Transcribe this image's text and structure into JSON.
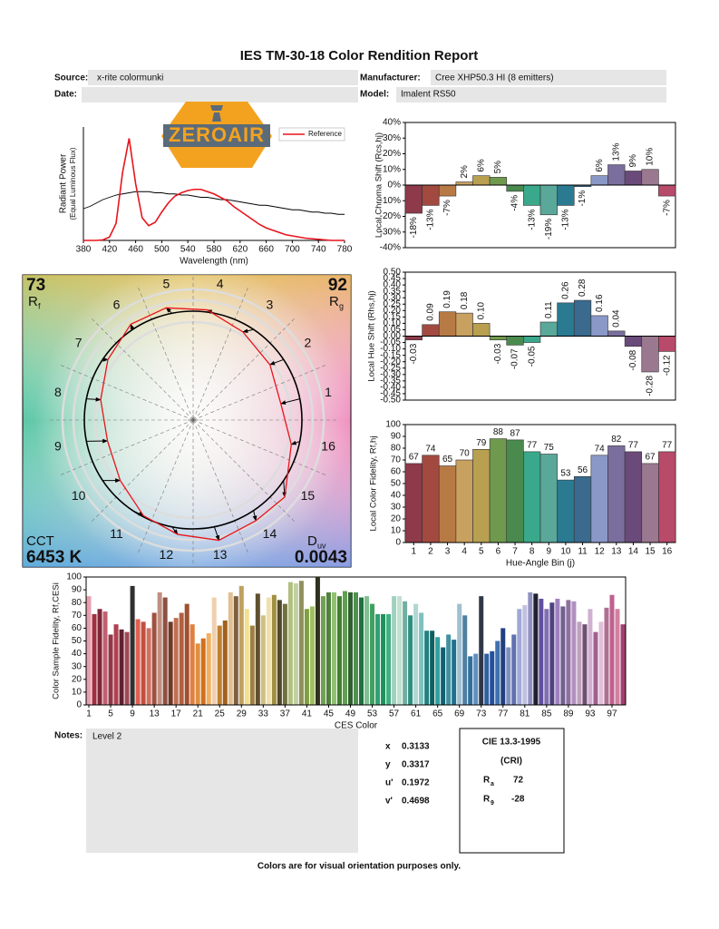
{
  "title": "IES TM-30-18 Color Rendition Report",
  "header": {
    "source_label": "Source:",
    "source": "x-rite colormunki",
    "manufacturer_label": "Manufacturer:",
    "manufacturer": "Cree XHP50.3 HI (8 emitters)",
    "date_label": "Date:",
    "model_label": "Model:",
    "model": "Imalent RS50"
  },
  "logo": {
    "text": "ZEROAIR"
  },
  "chart_data": [
    {
      "type": "line",
      "xlabel": "Wavelength (nm)",
      "ylabel": "Radiant Power",
      "ylabel2": "(Equal Luminous Flux)",
      "x": [
        380,
        390,
        400,
        410,
        420,
        430,
        440,
        450,
        460,
        470,
        480,
        490,
        500,
        510,
        520,
        530,
        540,
        550,
        560,
        570,
        580,
        590,
        600,
        610,
        620,
        630,
        640,
        650,
        660,
        670,
        680,
        690,
        700,
        710,
        720,
        730,
        740,
        750,
        760,
        770,
        780
      ],
      "xlim": [
        380,
        780
      ],
      "xticks": [
        380,
        420,
        460,
        500,
        540,
        580,
        620,
        660,
        700,
        740,
        780
      ],
      "ylim": [
        0,
        1
      ],
      "series": [
        {
          "name": "Reference",
          "color": "#e8141c",
          "values": [
            0,
            0,
            0,
            0.005,
            0.03,
            0.15,
            0.6,
            0.9,
            0.5,
            0.2,
            0.13,
            0.16,
            0.25,
            0.33,
            0.39,
            0.42,
            0.44,
            0.45,
            0.45,
            0.43,
            0.41,
            0.38,
            0.35,
            0.3,
            0.26,
            0.22,
            0.18,
            0.14,
            0.11,
            0.09,
            0.07,
            0.05,
            0.04,
            0.03,
            0.02,
            0.015,
            0.01,
            0.005,
            0,
            0,
            0
          ]
        },
        {
          "color": "#000000",
          "values": [
            0.28,
            0.3,
            0.33,
            0.36,
            0.38,
            0.4,
            0.41,
            0.42,
            0.43,
            0.43,
            0.43,
            0.42,
            0.42,
            0.41,
            0.41,
            0.4,
            0.4,
            0.39,
            0.38,
            0.38,
            0.37,
            0.36,
            0.36,
            0.35,
            0.34,
            0.33,
            0.32,
            0.31,
            0.31,
            0.3,
            0.29,
            0.28,
            0.27,
            0.27,
            0.26,
            0.25,
            0.25,
            0.24,
            0.24,
            0.23,
            0.23
          ]
        }
      ]
    },
    {
      "type": "bar",
      "ylabel": "Local Chroma Shift (Rcs,hj)",
      "values": [
        -18,
        -13,
        -7,
        2,
        6,
        5,
        -4,
        -13,
        -19,
        -13,
        -1,
        6,
        13,
        9,
        10,
        -7
      ],
      "value_labels": [
        "-18%",
        "-13%",
        "-7%",
        "2%",
        "6%",
        "5%",
        "-4%",
        "-13%",
        "-19%",
        "-13%",
        "-1%",
        "6%",
        "13%",
        "9%",
        "10%",
        "-7%"
      ],
      "colors": [
        "#8e3a4a",
        "#a24a40",
        "#b87a45",
        "#c8a060",
        "#b8a050",
        "#6f9a4e",
        "#4a8a4e",
        "#3aa88a",
        "#5aa89a",
        "#2a7a92",
        "#3a6a8e",
        "#8a98c8",
        "#7a6e9e",
        "#6a4a7a",
        "#9a7890",
        "#b84a6a"
      ],
      "ylim": [
        -40,
        40
      ],
      "yticks": [
        {
          "value": -40,
          "label": "-40%"
        },
        {
          "value": -30,
          "label": "-30%"
        },
        {
          "value": -20,
          "label": "-20%"
        },
        {
          "value": -10,
          "label": "-10%"
        },
        {
          "value": 0,
          "label": "0%"
        },
        {
          "value": 10,
          "label": "10%"
        },
        {
          "value": 20,
          "label": "20%"
        },
        {
          "value": 30,
          "label": "30%"
        },
        {
          "value": 40,
          "label": "40%"
        }
      ]
    },
    {
      "type": "bar",
      "ylabel": "Local Hue Shift (Rhs,hj)",
      "values": [
        -0.03,
        0.09,
        0.19,
        0.18,
        0.1,
        -0.03,
        -0.07,
        -0.05,
        0.11,
        0.26,
        0.28,
        0.16,
        0.04,
        -0.08,
        -0.28,
        -0.12
      ],
      "value_labels": [
        "-0.03",
        "0.09",
        "0.19",
        "0.18",
        "0.10",
        "-0.03",
        "-0.07",
        "-0.05",
        "0.11",
        "0.26",
        "0.28",
        "0.16",
        "0.04",
        "-0.08",
        "-0.28",
        "-0.12"
      ],
      "colors": [
        "#8e3a4a",
        "#a24a40",
        "#b87a45",
        "#c8a060",
        "#b8a050",
        "#6f9a4e",
        "#4a8a4e",
        "#3aa88a",
        "#5aa89a",
        "#2a7a92",
        "#3a6a8e",
        "#8a98c8",
        "#7a6e9e",
        "#6a4a7a",
        "#9a7890",
        "#b84a6a"
      ],
      "ylim": [
        -0.5,
        0.5
      ],
      "yticks": [
        {
          "value": -0.5,
          "label": "-0.50"
        },
        {
          "value": -0.45,
          "label": "-0.45"
        },
        {
          "value": -0.4,
          "label": "-0.40"
        },
        {
          "value": -0.35,
          "label": "-0.35"
        },
        {
          "value": -0.3,
          "label": "-0.30"
        },
        {
          "value": -0.25,
          "label": "-0.25"
        },
        {
          "value": -0.2,
          "label": "-0.20"
        },
        {
          "value": -0.15,
          "label": "-0.15"
        },
        {
          "value": -0.1,
          "label": "-0.10"
        },
        {
          "value": -0.05,
          "label": "-0.05"
        },
        {
          "value": 0,
          "label": "0.00"
        },
        {
          "value": 0.05,
          "label": "0.05"
        },
        {
          "value": 0.1,
          "label": "0.10"
        },
        {
          "value": 0.15,
          "label": "0.15"
        },
        {
          "value": 0.2,
          "label": "0.20"
        },
        {
          "value": 0.25,
          "label": "0.25"
        },
        {
          "value": 0.3,
          "label": "0.30"
        },
        {
          "value": 0.35,
          "label": "0.35"
        },
        {
          "value": 0.4,
          "label": "0.40"
        },
        {
          "value": 0.45,
          "label": "0.45"
        },
        {
          "value": 0.5,
          "label": "0.50"
        }
      ]
    },
    {
      "type": "bar",
      "xlabel": "Hue-Angle Bin (j)",
      "ylabel": "Local Color Fidelity, Rf,hj",
      "categories": [
        "1",
        "2",
        "3",
        "4",
        "5",
        "6",
        "7",
        "8",
        "9",
        "10",
        "11",
        "12",
        "13",
        "14",
        "15",
        "16"
      ],
      "values": [
        67,
        74,
        65,
        70,
        79,
        88,
        87,
        77,
        75,
        53,
        56,
        74,
        82,
        77,
        67,
        77
      ],
      "colors": [
        "#8e3a4a",
        "#a24a40",
        "#b87a45",
        "#c8a060",
        "#b8a050",
        "#6f9a4e",
        "#4a8a4e",
        "#3aa88a",
        "#5aa89a",
        "#2a7a92",
        "#3a6a8e",
        "#8a98c8",
        "#7a6e9e",
        "#6a4a7a",
        "#9a7890",
        "#b84a6a"
      ],
      "ylim": [
        0,
        100
      ],
      "yticks": [
        0,
        10,
        20,
        30,
        40,
        50,
        60,
        70,
        80,
        90,
        100
      ]
    },
    {
      "type": "bar",
      "xlabel": "CES Color",
      "ylabel": "Color Sample Fidelity, Rf,CESi",
      "categories": [
        "1",
        null,
        null,
        null,
        "5",
        null,
        null,
        null,
        "9",
        null,
        null,
        null,
        "13",
        null,
        null,
        null,
        "17",
        null,
        null,
        null,
        "21",
        null,
        null,
        null,
        "25",
        null,
        null,
        null,
        "29",
        null,
        null,
        null,
        "33",
        null,
        null,
        null,
        "37",
        null,
        null,
        null,
        "41",
        null,
        null,
        null,
        "45",
        null,
        null,
        null,
        "49",
        null,
        null,
        null,
        "53",
        null,
        null,
        null,
        "57",
        null,
        null,
        null,
        "61",
        null,
        null,
        null,
        "65",
        null,
        null,
        null,
        "69",
        null,
        null,
        null,
        "73",
        null,
        null,
        null,
        "77",
        null,
        null,
        null,
        "81",
        null,
        null,
        null,
        "85",
        null,
        null,
        null,
        "89",
        null,
        null,
        null,
        "93",
        null,
        null,
        null,
        "97",
        null,
        null
      ],
      "values": [
        85,
        71,
        75,
        73,
        55,
        63,
        59,
        57,
        93,
        67,
        65,
        60,
        72,
        88,
        84,
        65,
        68,
        72,
        79,
        63,
        48,
        52,
        56,
        84,
        62,
        66,
        88,
        85,
        93,
        75,
        62,
        87,
        70,
        84,
        86,
        82,
        79,
        96,
        95,
        97,
        75,
        77,
        100,
        85,
        88,
        88,
        85,
        89,
        88,
        88,
        84,
        85,
        79,
        71,
        71,
        71,
        85,
        85,
        81,
        70,
        79,
        72,
        58,
        58,
        53,
        45,
        55,
        51,
        79,
        70,
        38,
        40,
        85,
        40,
        42,
        50,
        60,
        45,
        55,
        75,
        78,
        88,
        87,
        83,
        75,
        80,
        83,
        77,
        82,
        81,
        65,
        63,
        75,
        57,
        65,
        76,
        86,
        75,
        63
      ],
      "colors": [
        "#e8a0b0",
        "#a03040",
        "#802838",
        "#c06070",
        "#903848",
        "#b04050",
        "#602030",
        "#a04858",
        "#303030",
        "#e06050",
        "#c05040",
        "#d07060",
        "#a05040",
        "#c09080",
        "#905040",
        "#703828",
        "#c07050",
        "#b06040",
        "#a05030",
        "#e08040",
        "#e09040",
        "#d07020",
        "#f0b060",
        "#f0d0b0",
        "#c08030",
        "#a06020",
        "#e0c090",
        "#806040",
        "#c0a060",
        "#f0e090",
        "#a08040",
        "#605030",
        "#d0c080",
        "#f0e0b0",
        "#a09040",
        "#504828",
        "#707040",
        "#b0c080",
        "#c0d0a0",
        "#909060",
        "#80a040",
        "#a0c060",
        "#303020",
        "#70a050",
        "#508040",
        "#90c070",
        "#408030",
        "#60a050",
        "#306030",
        "#509050",
        "#207040",
        "#80c090",
        "#40a060",
        "#30a070",
        "#209060",
        "#40b080",
        "#a0d0c0",
        "#c0e0d0",
        "#70b0a0",
        "#309080",
        "#b0d8d0",
        "#80c0c0",
        "#208080",
        "#106060",
        "#30a0a0",
        "#106070",
        "#4090a0",
        "#207090",
        "#a0c0d0",
        "#5080a0",
        "#3070a0",
        "#6090c0",
        "#303848",
        "#3060a0",
        "#2050a0",
        "#4070b0",
        "#204080",
        "#8090c0",
        "#6070b0",
        "#a0a8d8",
        "#c0c0e0",
        "#9090c0",
        "#202030",
        "#6050a0",
        "#8070b0",
        "#504080",
        "#a080c0",
        "#706090",
        "#9070a0",
        "#b090c0",
        "#c0a0c0",
        "#705070",
        "#d0b0d0",
        "#a06090",
        "#e0c0d8",
        "#b07090",
        "#c06090",
        "#d080a0",
        "#a04070"
      ],
      "ylim": [
        0,
        100
      ],
      "yticks": [
        0,
        10,
        20,
        30,
        40,
        50,
        60,
        70,
        80,
        90,
        100
      ]
    },
    {
      "type": "vector",
      "rf": 73,
      "rf_symbol": "R",
      "rf_sub": "f",
      "rg": 92,
      "rg_symbol": "R",
      "rg_sub": "g",
      "cct_label": "CCT",
      "cct": {
        "value": 6453,
        "label": "6453 K"
      },
      "duv_symbol": "D",
      "duv_sub": "uv",
      "duv": 0.0043
    }
  ],
  "notes": {
    "label": "Notes:",
    "text": "Level 2"
  },
  "chromaticity": [
    {
      "label": "x",
      "value": 0.3133
    },
    {
      "label": "y",
      "value": 0.3317
    },
    {
      "label": "u'",
      "value": 0.1972
    },
    {
      "label": "v'",
      "value": 0.4698
    }
  ],
  "cri": {
    "title": "CIE 13.3-1995",
    "subtitle": "(CRI)",
    "ra_symbol": "R",
    "ra_sub": "a",
    "ra": 72,
    "r9_symbol": "R",
    "r9_sub": "9",
    "r9": -28
  },
  "footer": "Colors are for visual orientation purposes only."
}
